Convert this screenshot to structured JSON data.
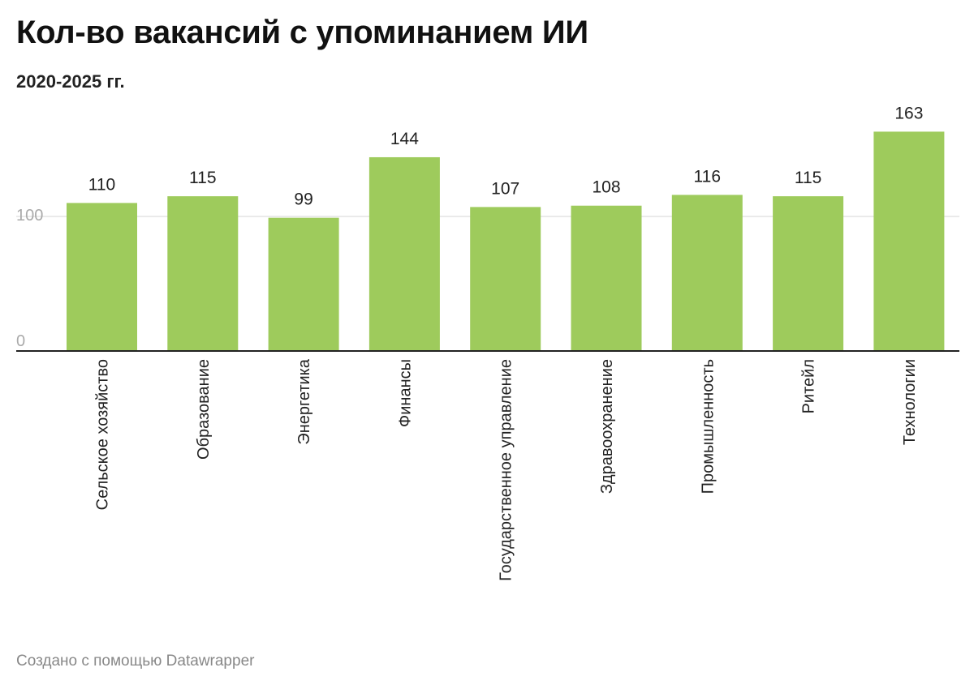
{
  "title": "Кол-во вакансий с упоминанием ИИ",
  "subtitle": "2020-2025 гг.",
  "footer": "Создано с помощью Datawrapper",
  "colors": {
    "bar": "#9ecb5c",
    "grid": "#e3e3e3",
    "axis": "#222222",
    "tick_text": "#aaaaaa",
    "label_text": "#222222"
  },
  "chart_data": {
    "type": "bar",
    "categories": [
      "Сельское хозяйство",
      "Образование",
      "Энергетика",
      "Финансы",
      "Государственное управление",
      "Здравоохранение",
      "Промышленность",
      "Ритейл",
      "Технологии"
    ],
    "values": [
      110,
      115,
      99,
      144,
      107,
      108,
      116,
      115,
      163
    ],
    "title": "Кол-во вакансий с упоминанием ИИ",
    "subtitle": "2020-2025 гг.",
    "xlabel": "",
    "ylabel": "",
    "yticks": [
      0,
      100
    ],
    "ylim": [
      0,
      163
    ],
    "grid": true,
    "data_labels": true
  }
}
